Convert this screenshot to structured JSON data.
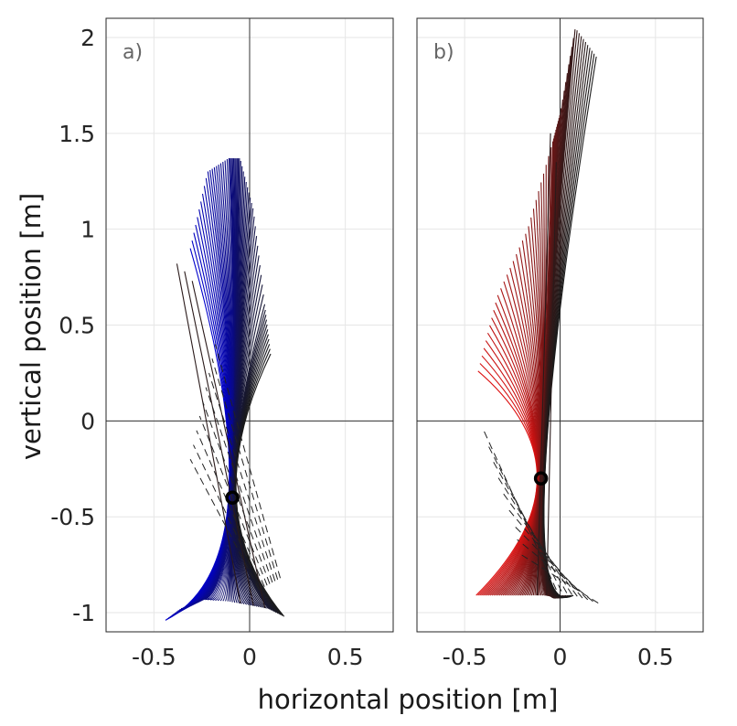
{
  "figure": {
    "xlabel": "horizontal position [m]",
    "ylabel": "vertical position [m]"
  },
  "chart_data": [
    {
      "type": "line",
      "panel_label": "a)",
      "xlim": [
        -0.75,
        0.75
      ],
      "ylim": [
        -1.1,
        2.1
      ],
      "x_ticks": [
        "-0.5",
        "0",
        "0.5"
      ],
      "y_ticks": [
        "-1",
        "-0.5",
        "0",
        "0.5",
        "1",
        "1.5",
        "2"
      ],
      "grid": true,
      "color_start": "#0000cc",
      "color_end": "#1a1a1a",
      "marker": {
        "x": -0.09,
        "y": -0.4
      },
      "bottom_ends": {
        "x": [
          -0.44,
          -0.36,
          -0.25,
          -0.12,
          0.0,
          0.1,
          0.18
        ],
        "y": [
          -1.04,
          -0.98,
          -0.93,
          -0.94,
          -0.96,
          -0.98,
          -1.02
        ]
      },
      "top_ends": {
        "x": [
          -0.31,
          -0.22,
          -0.11,
          -0.05,
          0.02,
          0.08,
          0.11
        ],
        "y": [
          0.9,
          1.3,
          1.37,
          1.37,
          1.1,
          0.6,
          0.35
        ]
      },
      "extra_top_ends": {
        "x": [
          -0.38,
          -0.34,
          -0.3
        ],
        "y": [
          0.82,
          0.78,
          0.73
        ]
      },
      "solid_count": 60,
      "dashed": {
        "count": 9,
        "bottom_x": [
          0.05,
          0.16
        ],
        "bottom_y": [
          -0.88,
          -0.82
        ],
        "top_x": [
          -0.31,
          -0.18
        ],
        "top_y": [
          -0.2,
          0.4
        ]
      }
    },
    {
      "type": "line",
      "panel_label": "b)",
      "xlim": [
        -0.75,
        0.75
      ],
      "ylim": [
        -1.1,
        2.1
      ],
      "x_ticks": [
        "-0.5",
        "0",
        "0.5"
      ],
      "y_ticks": [],
      "grid": true,
      "color_start": "#dd1111",
      "color_end": "#1a1a1a",
      "marker": {
        "x": -0.1,
        "y": -0.3
      },
      "bottom_ends": {
        "x": [
          -0.44,
          -0.33,
          -0.22,
          -0.12,
          -0.02,
          0.07
        ],
        "y": [
          -0.91,
          -0.91,
          -0.91,
          -0.91,
          -0.91,
          -0.91
        ]
      },
      "top_ends": {
        "x": [
          -0.43,
          -0.33,
          -0.17,
          -0.04,
          0.0,
          0.08,
          0.19
        ],
        "y": [
          0.26,
          0.65,
          1.0,
          1.45,
          1.6,
          2.05,
          1.9
        ]
      },
      "extra_top_ends": {
        "x": [
          -0.05,
          -0.02
        ],
        "y": [
          1.5,
          1.35
        ]
      },
      "solid_count": 60,
      "dashed": {
        "count": 9,
        "bottom_x": [
          -0.02,
          0.2
        ],
        "bottom_y": [
          -0.88,
          -0.95
        ],
        "top_x": [
          -0.4,
          -0.2
        ],
        "top_y": [
          -0.05,
          -0.7
        ]
      }
    }
  ]
}
